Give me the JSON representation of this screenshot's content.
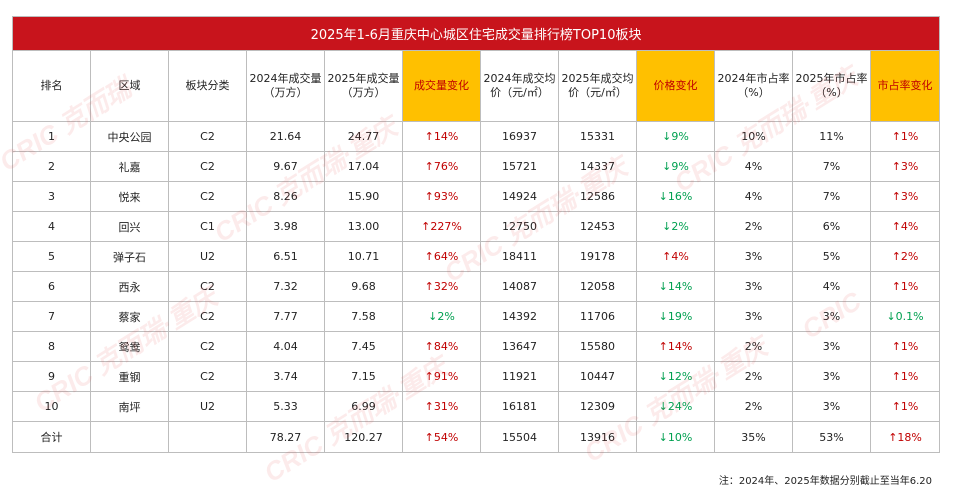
{
  "title": "2025年1-6月重庆中心城区住宅成交量排行榜TOP10板块",
  "columns": [
    {
      "label": "排名",
      "highlight": false
    },
    {
      "label": "区域",
      "highlight": false
    },
    {
      "label": "板块分类",
      "highlight": false
    },
    {
      "label": "2024年成交量（万方）",
      "highlight": false
    },
    {
      "label": "2025年成交量（万方）",
      "highlight": false
    },
    {
      "label": "成交量变化",
      "highlight": true
    },
    {
      "label": "2024年成交均价（元/㎡）",
      "highlight": false
    },
    {
      "label": "2025年成交均价（元/㎡）",
      "highlight": false
    },
    {
      "label": "价格变化",
      "highlight": true
    },
    {
      "label": "2024年市占率（%）",
      "highlight": false
    },
    {
      "label": "2025年市占率（%）",
      "highlight": false
    },
    {
      "label": "市占率变化",
      "highlight": true
    }
  ],
  "rows": [
    {
      "rank": "1",
      "area": "中央公园",
      "cat": "C2",
      "v2024": "21.64",
      "v2025": "24.77",
      "vchg": "↑14%",
      "p2024": "16937",
      "p2025": "15331",
      "pchg": "↓9%",
      "s2024": "10%",
      "s2025": "11%",
      "schg": "↑1%"
    },
    {
      "rank": "2",
      "area": "礼嘉",
      "cat": "C2",
      "v2024": "9.67",
      "v2025": "17.04",
      "vchg": "↑76%",
      "p2024": "15721",
      "p2025": "14337",
      "pchg": "↓9%",
      "s2024": "4%",
      "s2025": "7%",
      "schg": "↑3%"
    },
    {
      "rank": "3",
      "area": "悦来",
      "cat": "C2",
      "v2024": "8.26",
      "v2025": "15.90",
      "vchg": "↑93%",
      "p2024": "14924",
      "p2025": "12586",
      "pchg": "↓16%",
      "s2024": "4%",
      "s2025": "7%",
      "schg": "↑3%"
    },
    {
      "rank": "4",
      "area": "回兴",
      "cat": "C1",
      "v2024": "3.98",
      "v2025": "13.00",
      "vchg": "↑227%",
      "p2024": "12750",
      "p2025": "12453",
      "pchg": "↓2%",
      "s2024": "2%",
      "s2025": "6%",
      "schg": "↑4%"
    },
    {
      "rank": "5",
      "area": "弹子石",
      "cat": "U2",
      "v2024": "6.51",
      "v2025": "10.71",
      "vchg": "↑64%",
      "p2024": "18411",
      "p2025": "19178",
      "pchg": "↑4%",
      "s2024": "3%",
      "s2025": "5%",
      "schg": "↑2%"
    },
    {
      "rank": "6",
      "area": "西永",
      "cat": "C2",
      "v2024": "7.32",
      "v2025": "9.68",
      "vchg": "↑32%",
      "p2024": "14087",
      "p2025": "12058",
      "pchg": "↓14%",
      "s2024": "3%",
      "s2025": "4%",
      "schg": "↑1%"
    },
    {
      "rank": "7",
      "area": "蔡家",
      "cat": "C2",
      "v2024": "7.77",
      "v2025": "7.58",
      "vchg": "↓2%",
      "p2024": "14392",
      "p2025": "11706",
      "pchg": "↓19%",
      "s2024": "3%",
      "s2025": "3%",
      "schg": "↓0.1%"
    },
    {
      "rank": "8",
      "area": "鸳鸯",
      "cat": "C2",
      "v2024": "4.04",
      "v2025": "7.45",
      "vchg": "↑84%",
      "p2024": "13647",
      "p2025": "15580",
      "pchg": "↑14%",
      "s2024": "2%",
      "s2025": "3%",
      "schg": "↑1%"
    },
    {
      "rank": "9",
      "area": "重钢",
      "cat": "C2",
      "v2024": "3.74",
      "v2025": "7.15",
      "vchg": "↑91%",
      "p2024": "11921",
      "p2025": "10447",
      "pchg": "↓12%",
      "s2024": "2%",
      "s2025": "3%",
      "schg": "↑1%"
    },
    {
      "rank": "10",
      "area": "南坪",
      "cat": "U2",
      "v2024": "5.33",
      "v2025": "6.99",
      "vchg": "↑31%",
      "p2024": "16181",
      "p2025": "12309",
      "pchg": "↓24%",
      "s2024": "2%",
      "s2025": "3%",
      "schg": "↑1%"
    }
  ],
  "total": {
    "rank": "合计",
    "area": "",
    "cat": "",
    "v2024": "78.27",
    "v2025": "120.27",
    "vchg": "↑54%",
    "p2024": "15504",
    "p2025": "13916",
    "pchg": "↓10%",
    "s2024": "35%",
    "s2025": "53%",
    "schg": "↑18%"
  },
  "note": "注：2024年、2025年数据分别截止至当年6.20",
  "colors": {
    "header_bg": "#c8141c",
    "highlight_bg": "#ffc000",
    "up": "#c00000",
    "down": "#00a050"
  }
}
